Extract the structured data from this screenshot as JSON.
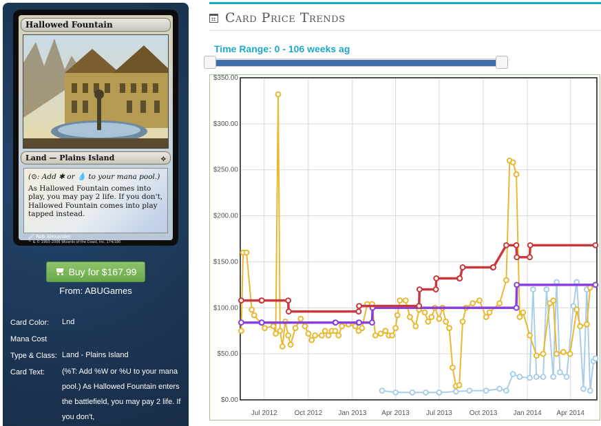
{
  "card": {
    "name": "Hallowed Fountain",
    "type_line": "Land — Plains Island",
    "reminder_text": "(⊙: Add ✱ or 💧 to your mana pool.)",
    "rules_text": "As Hallowed Fountain comes into play, you may pay 2 life. If you don't, Hallowed Fountain comes into play tapped instead.",
    "artist": "Rob Alexander",
    "copyright": "™ & © 1993–2006 Wizards of the Coast, Inc. 174/180"
  },
  "buy": {
    "label": "Buy for $167.99",
    "from": "From: ABUGames"
  },
  "details": [
    {
      "label": "Card Color:",
      "value": "Lnd"
    },
    {
      "label": "Mana Cost",
      "value": ""
    },
    {
      "label": "Type & Class:",
      "value": "Land - Plains Island"
    },
    {
      "label": "Card Text:",
      "value": "(%T: Add %W or %U to your mana pool.) As Hallowed Fountain enters the battlefield, you may pay 2 life. If you don't,"
    }
  ],
  "section_title": "Card Price Trends",
  "time_range": {
    "label": "Time Range: 0 - 106 weeks ag"
  },
  "colors": {
    "accent": "#1ba9c6",
    "red": "#c8383c",
    "yellow": "#e8b830",
    "purple": "#8a3ee0",
    "lightblue": "#a8cde8"
  },
  "chart_data": {
    "type": "line",
    "title": "",
    "xlabel": "",
    "ylabel": "",
    "x_range": [
      "2012-05-12",
      "2014-05-26"
    ],
    "ylim": [
      0,
      350
    ],
    "y_ticks": [
      "$0.00",
      "$50.00",
      "$100.00",
      "$150.00",
      "$200.00",
      "$250.00",
      "$300.00",
      "$350.00"
    ],
    "x_ticks": [
      {
        "label": "Jul 2012",
        "date": "2012-07-01"
      },
      {
        "label": "Oct 2012",
        "date": "2012-10-01"
      },
      {
        "label": "Jan 2013",
        "date": "2013-01-01"
      },
      {
        "label": "Apr 2013",
        "date": "2013-04-01"
      },
      {
        "label": "Jul 2013",
        "date": "2013-07-01"
      },
      {
        "label": "Oct 2013",
        "date": "2013-10-01"
      },
      {
        "label": "Jan 2014",
        "date": "2014-01-01"
      },
      {
        "label": "Apr 2014",
        "date": "2014-04-01"
      }
    ],
    "grid": true,
    "series": [
      {
        "color": "#c8383c",
        "points": [
          [
            "2012-05-14",
            108
          ],
          [
            "2012-06-25",
            108
          ],
          [
            "2012-06-26",
            108
          ],
          [
            "2012-08-20",
            108
          ],
          [
            "2012-08-21",
            96
          ],
          [
            "2013-01-14",
            96
          ],
          [
            "2013-01-15",
            102
          ],
          [
            "2013-05-20",
            102
          ],
          [
            "2013-05-21",
            120
          ],
          [
            "2013-06-24",
            120
          ],
          [
            "2013-06-25",
            132
          ],
          [
            "2013-08-12",
            132
          ],
          [
            "2013-08-13",
            132
          ],
          [
            "2013-08-19",
            144
          ],
          [
            "2013-10-21",
            144
          ],
          [
            "2013-10-22",
            144
          ],
          [
            "2013-11-18",
            168
          ],
          [
            "2013-12-09",
            168
          ],
          [
            "2013-12-10",
            155
          ],
          [
            "2014-01-06",
            155
          ],
          [
            "2014-01-07",
            168
          ],
          [
            "2014-05-23",
            168
          ]
        ]
      },
      {
        "color": "#8a3ee0",
        "points": [
          [
            "2012-05-14",
            84
          ],
          [
            "2012-06-25",
            84
          ],
          [
            "2012-06-26",
            84
          ],
          [
            "2012-11-26",
            84
          ],
          [
            "2012-11-27",
            84
          ],
          [
            "2013-01-14",
            84
          ],
          [
            "2013-01-15",
            84
          ],
          [
            "2013-02-11",
            84
          ],
          [
            "2013-02-12",
            100
          ],
          [
            "2013-12-09",
            100
          ],
          [
            "2013-12-10",
            125
          ],
          [
            "2014-05-23",
            125
          ]
        ]
      },
      {
        "color": "#e8b830",
        "points": [
          [
            "2012-05-14",
            75
          ],
          [
            "2012-05-18",
            160
          ],
          [
            "2012-05-25",
            160
          ],
          [
            "2012-06-05",
            98
          ],
          [
            "2012-06-10",
            92
          ],
          [
            "2012-07-02",
            78
          ],
          [
            "2012-07-20",
            80
          ],
          [
            "2012-07-25",
            72
          ],
          [
            "2012-07-30",
            332
          ],
          [
            "2012-08-03",
            75
          ],
          [
            "2012-08-08",
            58
          ],
          [
            "2012-08-14",
            85
          ],
          [
            "2012-08-20",
            70
          ],
          [
            "2012-08-25",
            60
          ],
          [
            "2012-09-04",
            78
          ],
          [
            "2012-09-15",
            88
          ],
          [
            "2012-09-24",
            80
          ],
          [
            "2012-10-01",
            72
          ],
          [
            "2012-10-08",
            65
          ],
          [
            "2012-10-15",
            70
          ],
          [
            "2012-10-29",
            70
          ],
          [
            "2012-11-05",
            75
          ],
          [
            "2012-11-12",
            70
          ],
          [
            "2012-11-19",
            75
          ],
          [
            "2012-11-26",
            75
          ],
          [
            "2012-12-03",
            70
          ],
          [
            "2012-12-10",
            80
          ],
          [
            "2012-12-24",
            82
          ],
          [
            "2013-01-07",
            80
          ],
          [
            "2013-01-14",
            75
          ],
          [
            "2013-01-21",
            78
          ],
          [
            "2013-02-01",
            104
          ],
          [
            "2013-02-11",
            104
          ],
          [
            "2013-02-18",
            70
          ],
          [
            "2013-03-01",
            72
          ],
          [
            "2013-03-11",
            75
          ],
          [
            "2013-03-18",
            70
          ],
          [
            "2013-03-25",
            70
          ],
          [
            "2013-04-01",
            78
          ],
          [
            "2013-04-05",
            92
          ],
          [
            "2013-04-10",
            108
          ],
          [
            "2013-04-22",
            108
          ],
          [
            "2013-05-01",
            90
          ],
          [
            "2013-05-13",
            80
          ],
          [
            "2013-05-20",
            98
          ],
          [
            "2013-06-01",
            95
          ],
          [
            "2013-06-08",
            85
          ],
          [
            "2013-06-15",
            90
          ],
          [
            "2013-06-22",
            100
          ],
          [
            "2013-07-01",
            88
          ],
          [
            "2013-07-08",
            100
          ],
          [
            "2013-07-15",
            85
          ],
          [
            "2013-07-22",
            78
          ],
          [
            "2013-07-29",
            35
          ],
          [
            "2013-08-05",
            15
          ],
          [
            "2013-08-12",
            16
          ],
          [
            "2013-08-19",
            85
          ],
          [
            "2013-08-26",
            100
          ],
          [
            "2013-09-09",
            105
          ],
          [
            "2013-09-23",
            108
          ],
          [
            "2013-10-07",
            90
          ],
          [
            "2013-10-14",
            95
          ],
          [
            "2013-11-04",
            105
          ],
          [
            "2013-11-18",
            130
          ],
          [
            "2013-11-25",
            260
          ],
          [
            "2013-12-02",
            258
          ],
          [
            "2013-12-09",
            245
          ],
          [
            "2013-12-16",
            90
          ],
          [
            "2013-12-23",
            95
          ],
          [
            "2014-01-06",
            70
          ],
          [
            "2014-01-20",
            48
          ],
          [
            "2014-02-03",
            50
          ],
          [
            "2014-02-17",
            105
          ],
          [
            "2014-02-24",
            108
          ],
          [
            "2014-03-03",
            50
          ],
          [
            "2014-03-17",
            52
          ],
          [
            "2014-03-31",
            50
          ],
          [
            "2014-04-14",
            98
          ],
          [
            "2014-04-21",
            80
          ],
          [
            "2014-05-05",
            82
          ],
          [
            "2014-05-12",
            122
          ],
          [
            "2014-05-23",
            125
          ]
        ]
      },
      {
        "color": "#a8cde8",
        "points": [
          [
            "2013-03-04",
            10
          ],
          [
            "2013-04-01",
            8
          ],
          [
            "2013-05-06",
            8
          ],
          [
            "2013-06-03",
            8
          ],
          [
            "2013-07-01",
            8
          ],
          [
            "2013-08-05",
            9
          ],
          [
            "2013-09-02",
            10
          ],
          [
            "2013-10-07",
            10
          ],
          [
            "2013-11-04",
            12
          ],
          [
            "2013-11-18",
            10
          ],
          [
            "2013-12-02",
            28
          ],
          [
            "2013-12-16",
            25
          ],
          [
            "2014-01-06",
            24
          ],
          [
            "2014-01-13",
            120
          ],
          [
            "2014-01-20",
            25
          ],
          [
            "2014-02-03",
            25
          ],
          [
            "2014-02-10",
            120
          ],
          [
            "2014-02-24",
            25
          ],
          [
            "2014-03-03",
            128
          ],
          [
            "2014-03-10",
            30
          ],
          [
            "2014-03-24",
            25
          ],
          [
            "2014-04-07",
            102
          ],
          [
            "2014-04-14",
            128
          ],
          [
            "2014-04-28",
            12
          ],
          [
            "2014-05-05",
            120
          ],
          [
            "2014-05-12",
            10
          ],
          [
            "2014-05-19",
            42
          ],
          [
            "2014-05-23",
            45
          ]
        ]
      }
    ]
  }
}
